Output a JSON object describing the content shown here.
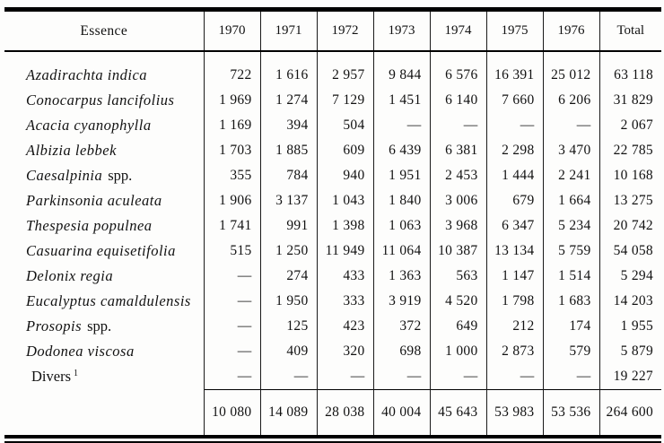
{
  "table": {
    "header": {
      "essence": "Essence",
      "years": [
        "1970",
        "1971",
        "1972",
        "1973",
        "1974",
        "1975",
        "1976"
      ],
      "total": "Total"
    },
    "rows": [
      {
        "italic": "Azadirachta indica",
        "roman": "",
        "sup": "",
        "values": [
          "722",
          "1 616",
          "2 957",
          "9 844",
          "6 576",
          "16 391",
          "25 012",
          "63 118"
        ]
      },
      {
        "italic": "Conocarpus lancifolius",
        "roman": "",
        "sup": "",
        "values": [
          "1 969",
          "1 274",
          "7 129",
          "1 451",
          "6 140",
          "7 660",
          "6 206",
          "31 829"
        ]
      },
      {
        "italic": "Acacia cyanophylla",
        "roman": "",
        "sup": "",
        "values": [
          "1 169",
          "394",
          "504",
          "—",
          "—",
          "—",
          "—",
          "2 067"
        ]
      },
      {
        "italic": "Albizia lebbek",
        "roman": "",
        "sup": "",
        "values": [
          "1 703",
          "1 885",
          "609",
          "6 439",
          "6 381",
          "2 298",
          "3 470",
          "22 785"
        ]
      },
      {
        "italic": "Caesalpinia",
        "roman": "spp.",
        "sup": "",
        "values": [
          "355",
          "784",
          "940",
          "1 951",
          "2 453",
          "1 444",
          "2 241",
          "10 168"
        ]
      },
      {
        "italic": "Parkinsonia aculeata",
        "roman": "",
        "sup": "",
        "values": [
          "1 906",
          "3 137",
          "1 043",
          "1 840",
          "3 006",
          "679",
          "1 664",
          "13 275"
        ]
      },
      {
        "italic": "Thespesia populnea",
        "roman": "",
        "sup": "",
        "values": [
          "1 741",
          "991",
          "1 398",
          "1 063",
          "3 968",
          "6 347",
          "5 234",
          "20 742"
        ]
      },
      {
        "italic": "Casuarina equisetifolia",
        "roman": "",
        "sup": "",
        "values": [
          "515",
          "1 250",
          "11 949",
          "11 064",
          "10 387",
          "13 134",
          "5 759",
          "54 058"
        ]
      },
      {
        "italic": "Delonix regia",
        "roman": "",
        "sup": "",
        "values": [
          "—",
          "274",
          "433",
          "1 363",
          "563",
          "1 147",
          "1 514",
          "5 294"
        ]
      },
      {
        "italic": "Eucalyptus camaldulensis",
        "roman": "",
        "sup": "",
        "values": [
          "—",
          "1 950",
          "333",
          "3 919",
          "4 520",
          "1 798",
          "1 683",
          "14 203"
        ]
      },
      {
        "italic": "Prosopis",
        "roman": "spp.",
        "sup": "",
        "values": [
          "—",
          "125",
          "423",
          "372",
          "649",
          "212",
          "174",
          "1 955"
        ]
      },
      {
        "italic": "Dodonea viscosa",
        "roman": "",
        "sup": "",
        "values": [
          "—",
          "409",
          "320",
          "698",
          "1 000",
          "2 873",
          "579",
          "5 879"
        ]
      },
      {
        "italic": "",
        "roman": "Divers",
        "sup": "1",
        "values": [
          "—",
          "—",
          "—",
          "—",
          "—",
          "—",
          "—",
          "19 227"
        ]
      }
    ],
    "totals": [
      "10 080",
      "14 089",
      "28 038",
      "40 004",
      "45 643",
      "53 983",
      "53 536",
      "264 600"
    ]
  }
}
